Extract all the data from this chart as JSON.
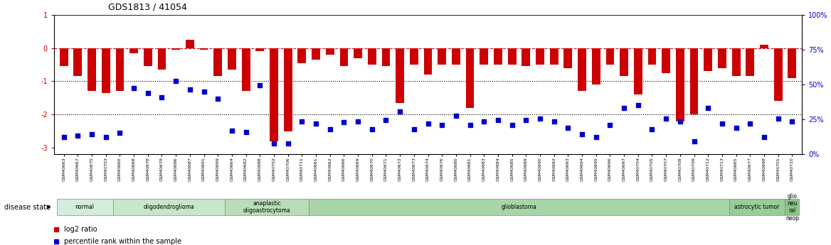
{
  "title": "GDS1813 / 41054",
  "samples": [
    "GSM40663",
    "GSM40667",
    "GSM40675",
    "GSM40703",
    "GSM40660",
    "GSM40668",
    "GSM40678",
    "GSM40679",
    "GSM40686",
    "GSM40687",
    "GSM40691",
    "GSM40699",
    "GSM40664",
    "GSM40682",
    "GSM40688",
    "GSM40702",
    "GSM40706",
    "GSM40711",
    "GSM40661",
    "GSM40662",
    "GSM40666",
    "GSM40669",
    "GSM40670",
    "GSM40671",
    "GSM40672",
    "GSM40673",
    "GSM40674",
    "GSM40676",
    "GSM40680",
    "GSM40681",
    "GSM40683",
    "GSM40684",
    "GSM40685",
    "GSM40689",
    "GSM40690",
    "GSM40692",
    "GSM40693",
    "GSM40694",
    "GSM40695",
    "GSM40696",
    "GSM40697",
    "GSM40704",
    "GSM40705",
    "GSM40707",
    "GSM40708",
    "GSM40709",
    "GSM40712",
    "GSM40713",
    "GSM40665",
    "GSM40677",
    "GSM40698",
    "GSM40701",
    "GSM40710"
  ],
  "log2_ratio": [
    -0.55,
    -0.85,
    -1.3,
    -1.35,
    -1.3,
    -0.15,
    -0.55,
    -0.65,
    -0.05,
    0.25,
    -0.05,
    -0.85,
    -0.65,
    -1.3,
    -0.1,
    -2.8,
    -2.5,
    -0.45,
    -0.35,
    -0.2,
    -0.55,
    -0.3,
    -0.5,
    -0.55,
    -1.65,
    -0.5,
    -0.8,
    -0.5,
    -0.5,
    -1.8,
    -0.5,
    -0.5,
    -0.5,
    -0.55,
    -0.5,
    -0.5,
    -0.6,
    -1.3,
    -1.1,
    -0.5,
    -0.85,
    -1.4,
    -0.5,
    -0.75,
    -2.2,
    -2.0,
    -0.7,
    -0.6,
    -0.85,
    -0.85,
    0.1,
    -1.6,
    -0.9
  ],
  "percentile_rank": [
    8,
    9,
    10,
    8,
    11,
    45,
    41,
    38,
    50,
    44,
    42,
    37,
    13,
    12,
    47,
    3,
    3,
    20,
    18,
    14,
    19,
    20,
    14,
    21,
    27,
    14,
    18,
    17,
    24,
    17,
    20,
    21,
    17,
    21,
    22,
    20,
    15,
    10,
    8,
    17,
    30,
    32,
    14,
    22,
    20,
    5,
    30,
    18,
    15,
    18,
    8,
    22,
    20
  ],
  "disease_groups": [
    {
      "label": "normal",
      "start": 0,
      "end": 4,
      "color": "#d4edda"
    },
    {
      "label": "oligodendroglioma",
      "start": 4,
      "end": 12,
      "color": "#c8e6c9"
    },
    {
      "label": "anaplastic\noligoastrocytoma",
      "start": 12,
      "end": 18,
      "color": "#b8ddb8"
    },
    {
      "label": "glioblastoma",
      "start": 18,
      "end": 48,
      "color": "#a8d5a8"
    },
    {
      "label": "astrocytic tumor",
      "start": 48,
      "end": 52,
      "color": "#98cc98"
    },
    {
      "label": "glio\nneu\nral\nneop",
      "start": 52,
      "end": 53,
      "color": "#88c488"
    }
  ],
  "bar_color": "#cc0000",
  "dot_color": "#0000cc",
  "ylim_left": [
    -3.2,
    1.0
  ],
  "ylim_right": [
    0,
    100
  ],
  "yticks_left": [
    1,
    0,
    -1,
    -2,
    -3
  ],
  "yticks_right": [
    0,
    25,
    50,
    75,
    100
  ],
  "hline_zero": 0,
  "hline_dotted": [
    -1,
    -2
  ]
}
